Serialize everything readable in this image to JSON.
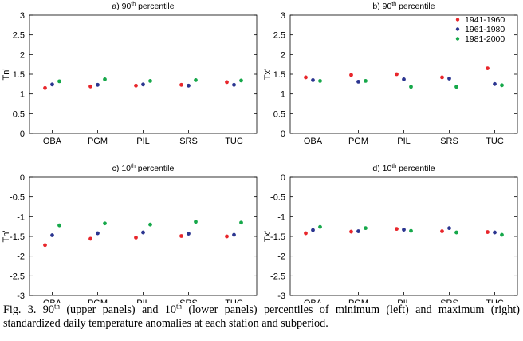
{
  "chart_data": [
    {
      "type": "scatter",
      "title": "a) 90",
      "title_sup": "th",
      "title_rest": " percentile",
      "ylabel": "Tn'",
      "ylim": [
        0,
        3
      ],
      "yticks": [
        "0",
        "0.5",
        "1",
        "1.5",
        "2",
        "2.5",
        "3"
      ],
      "categories": [
        "OBA",
        "PGM",
        "PIL",
        "SRS",
        "TUC"
      ],
      "series": [
        {
          "name": "1941-1960",
          "color": "#e8262b",
          "values": [
            1.15,
            1.19,
            1.21,
            1.23,
            1.3
          ]
        },
        {
          "name": "1961-1980",
          "color": "#2b3590",
          "values": [
            1.24,
            1.23,
            1.24,
            1.21,
            1.23
          ]
        },
        {
          "name": "1981-2000",
          "color": "#16a84a",
          "values": [
            1.32,
            1.37,
            1.33,
            1.35,
            1.34
          ]
        }
      ]
    },
    {
      "type": "scatter",
      "title": "b) 90",
      "title_sup": "th",
      "title_rest": " percentile",
      "ylabel": "Tx'",
      "ylim": [
        0,
        3
      ],
      "yticks": [
        "0",
        "0.5",
        "1",
        "1.5",
        "2",
        "2.5",
        "3"
      ],
      "categories": [
        "OBA",
        "PGM",
        "PIL",
        "SRS",
        "TUC"
      ],
      "legend": "top-right",
      "series": [
        {
          "name": "1941-1960",
          "color": "#e8262b",
          "values": [
            1.42,
            1.48,
            1.5,
            1.42,
            1.65
          ]
        },
        {
          "name": "1961-1980",
          "color": "#2b3590",
          "values": [
            1.35,
            1.31,
            1.37,
            1.39,
            1.25
          ]
        },
        {
          "name": "1981-2000",
          "color": "#16a84a",
          "values": [
            1.33,
            1.33,
            1.18,
            1.18,
            1.22
          ]
        }
      ]
    },
    {
      "type": "scatter",
      "title": "c) 10",
      "title_sup": "th",
      "title_rest": " percentile",
      "ylabel": "Tn'",
      "ylim": [
        -3,
        0
      ],
      "yticks": [
        "-3",
        "-2.5",
        "-2",
        "-1.5",
        "-1",
        "-0.5",
        "0"
      ],
      "categories": [
        "OBA",
        "PGM",
        "PIL",
        "SRS",
        "TUC"
      ],
      "series": [
        {
          "name": "1941-1960",
          "color": "#e8262b",
          "values": [
            -1.72,
            -1.56,
            -1.53,
            -1.49,
            -1.5
          ]
        },
        {
          "name": "1961-1980",
          "color": "#2b3590",
          "values": [
            -1.47,
            -1.42,
            -1.4,
            -1.43,
            -1.46
          ]
        },
        {
          "name": "1981-2000",
          "color": "#16a84a",
          "values": [
            -1.22,
            -1.17,
            -1.2,
            -1.13,
            -1.15
          ]
        }
      ]
    },
    {
      "type": "scatter",
      "title": "d) 10",
      "title_sup": "th",
      "title_rest": " percentile",
      "ylabel": "Tx'",
      "ylim": [
        -3,
        0
      ],
      "yticks": [
        "-3",
        "-2.5",
        "-2",
        "-1.5",
        "-1",
        "-0.5",
        "0"
      ],
      "categories": [
        "OBA",
        "PGM",
        "PIL",
        "SRS",
        "TUC"
      ],
      "series": [
        {
          "name": "1941-1960",
          "color": "#e8262b",
          "values": [
            -1.42,
            -1.38,
            -1.31,
            -1.37,
            -1.39
          ]
        },
        {
          "name": "1961-1980",
          "color": "#2b3590",
          "values": [
            -1.34,
            -1.37,
            -1.33,
            -1.29,
            -1.4
          ]
        },
        {
          "name": "1981-2000",
          "color": "#16a84a",
          "values": [
            -1.26,
            -1.29,
            -1.36,
            -1.4,
            -1.46
          ]
        }
      ]
    }
  ],
  "caption": {
    "t1": "Fig. 3. 90",
    "s1": "th",
    "t2": " (upper panels) and 10",
    "s2": "th",
    "t3": " (lower panels) percentiles of minimum (left) and maximum (right) standardized daily temperature anomalies at each station and subperiod."
  }
}
